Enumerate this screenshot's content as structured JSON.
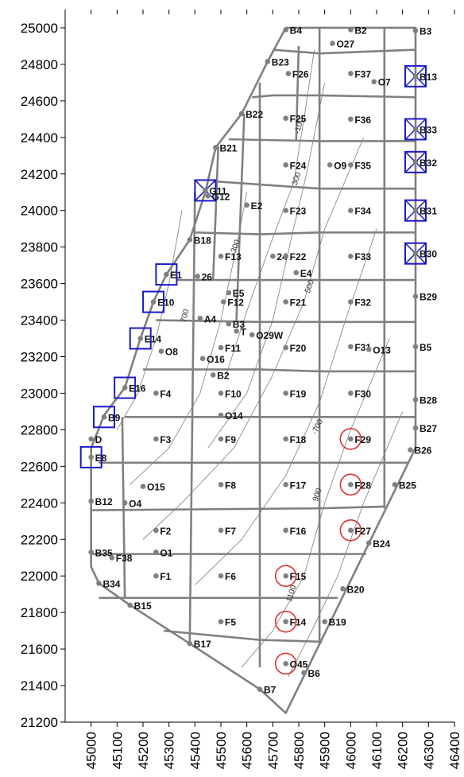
{
  "chart_data": {
    "type": "scatter",
    "title": "",
    "xlabel": "",
    "ylabel": "",
    "xlim": [
      44900,
      46400
    ],
    "ylim": [
      21200,
      25100
    ],
    "x_ticks": [
      45000,
      45100,
      45200,
      45300,
      45400,
      45500,
      45600,
      45700,
      45800,
      45900,
      46000,
      46100,
      46200,
      46300,
      46400
    ],
    "y_ticks": [
      21200,
      21400,
      21600,
      21800,
      22000,
      22200,
      22400,
      22600,
      22800,
      23000,
      23200,
      23400,
      23600,
      23800,
      24000,
      24200,
      24400,
      24600,
      24800,
      25000
    ],
    "grid": false,
    "colors": {
      "cells": "#808080",
      "wells": "#808080",
      "square_marker": "#1a1acc",
      "circle_marker": "#e03030",
      "contours": "#8a8a8a"
    },
    "wells": [
      {
        "label": "B4",
        "x": 45750,
        "y": 24990
      },
      {
        "label": "B2",
        "x": 46000,
        "y": 24990
      },
      {
        "label": "B3",
        "x": 46250,
        "y": 24985
      },
      {
        "label": "O27",
        "x": 45930,
        "y": 24915
      },
      {
        "label": "B23",
        "x": 45680,
        "y": 24815
      },
      {
        "label": "F26",
        "x": 45760,
        "y": 24750
      },
      {
        "label": "F37",
        "x": 46000,
        "y": 24750
      },
      {
        "label": "O7",
        "x": 46090,
        "y": 24705
      },
      {
        "label": "B13",
        "x": 46250,
        "y": 24735
      },
      {
        "label": "B22",
        "x": 45580,
        "y": 24530
      },
      {
        "label": "F25",
        "x": 45750,
        "y": 24505
      },
      {
        "label": "F36",
        "x": 46000,
        "y": 24500
      },
      {
        "label": "B33",
        "x": 46250,
        "y": 24445
      },
      {
        "label": "B21",
        "x": 45480,
        "y": 24345
      },
      {
        "label": "F24",
        "x": 45750,
        "y": 24250
      },
      {
        "label": "O9",
        "x": 45920,
        "y": 24250
      },
      {
        "label": "F35",
        "x": 46000,
        "y": 24250
      },
      {
        "label": "B32",
        "x": 46250,
        "y": 24265
      },
      {
        "label": "G11",
        "x": 45440,
        "y": 24110
      },
      {
        "label": "G12",
        "x": 45450,
        "y": 24080
      },
      {
        "label": "E2",
        "x": 45600,
        "y": 24030
      },
      {
        "label": "F23",
        "x": 45750,
        "y": 24000
      },
      {
        "label": "F34",
        "x": 46000,
        "y": 24000
      },
      {
        "label": "B31",
        "x": 46250,
        "y": 24000
      },
      {
        "label": "B18",
        "x": 45380,
        "y": 23840
      },
      {
        "label": "F13",
        "x": 45500,
        "y": 23750
      },
      {
        "label": "24",
        "x": 45700,
        "y": 23750
      },
      {
        "label": "F22",
        "x": 45750,
        "y": 23750
      },
      {
        "label": "F33",
        "x": 46000,
        "y": 23750
      },
      {
        "label": "B30",
        "x": 46250,
        "y": 23765
      },
      {
        "label": "E1",
        "x": 45290,
        "y": 23650
      },
      {
        "label": "26",
        "x": 45410,
        "y": 23640
      },
      {
        "label": "E4",
        "x": 45790,
        "y": 23660
      },
      {
        "label": "B29",
        "x": 46250,
        "y": 23530
      },
      {
        "label": "E5",
        "x": 45530,
        "y": 23550
      },
      {
        "label": "F12",
        "x": 45510,
        "y": 23500
      },
      {
        "label": "F21",
        "x": 45750,
        "y": 23500
      },
      {
        "label": "F32",
        "x": 46000,
        "y": 23500
      },
      {
        "label": "E10",
        "x": 45240,
        "y": 23500
      },
      {
        "label": "A4",
        "x": 45420,
        "y": 23410
      },
      {
        "label": "B3",
        "x": 45530,
        "y": 23380
      },
      {
        "label": "T",
        "x": 45560,
        "y": 23340
      },
      {
        "label": "O29W",
        "x": 45620,
        "y": 23320
      },
      {
        "label": "E14",
        "x": 45190,
        "y": 23300
      },
      {
        "label": "F11",
        "x": 45500,
        "y": 23250
      },
      {
        "label": "F20",
        "x": 45750,
        "y": 23250
      },
      {
        "label": "F31",
        "x": 46000,
        "y": 23255
      },
      {
        "label": "O13",
        "x": 46070,
        "y": 23240
      },
      {
        "label": "B5",
        "x": 46250,
        "y": 23255
      },
      {
        "label": "O8",
        "x": 45270,
        "y": 23230
      },
      {
        "label": "O16",
        "x": 45430,
        "y": 23190
      },
      {
        "label": "B2",
        "x": 45470,
        "y": 23100
      },
      {
        "label": "E16",
        "x": 45130,
        "y": 23030
      },
      {
        "label": "F4",
        "x": 45250,
        "y": 23000
      },
      {
        "label": "F10",
        "x": 45500,
        "y": 23000
      },
      {
        "label": "F19",
        "x": 45750,
        "y": 23000
      },
      {
        "label": "F30",
        "x": 46000,
        "y": 23000
      },
      {
        "label": "B28",
        "x": 46250,
        "y": 22965
      },
      {
        "label": "O14",
        "x": 45500,
        "y": 22880
      },
      {
        "label": "B9",
        "x": 45050,
        "y": 22870
      },
      {
        "label": "B27",
        "x": 46250,
        "y": 22810
      },
      {
        "label": "D",
        "x": 45000,
        "y": 22750
      },
      {
        "label": "F3",
        "x": 45250,
        "y": 22750
      },
      {
        "label": "F9",
        "x": 45500,
        "y": 22750
      },
      {
        "label": "F18",
        "x": 45750,
        "y": 22750
      },
      {
        "label": "F29",
        "x": 46000,
        "y": 22750
      },
      {
        "label": "E8",
        "x": 45000,
        "y": 22650
      },
      {
        "label": "B26",
        "x": 46230,
        "y": 22690
      },
      {
        "label": "O15",
        "x": 45200,
        "y": 22490
      },
      {
        "label": "F8",
        "x": 45500,
        "y": 22500
      },
      {
        "label": "F17",
        "x": 45750,
        "y": 22500
      },
      {
        "label": "F28",
        "x": 46000,
        "y": 22500
      },
      {
        "label": "B25",
        "x": 46170,
        "y": 22500
      },
      {
        "label": "B12",
        "x": 45000,
        "y": 22410
      },
      {
        "label": "O4",
        "x": 45130,
        "y": 22400
      },
      {
        "label": "F2",
        "x": 45250,
        "y": 22250
      },
      {
        "label": "F7",
        "x": 45500,
        "y": 22250
      },
      {
        "label": "F16",
        "x": 45750,
        "y": 22250
      },
      {
        "label": "F27",
        "x": 46000,
        "y": 22250
      },
      {
        "label": "B24",
        "x": 46070,
        "y": 22180
      },
      {
        "label": "B35",
        "x": 45000,
        "y": 22130
      },
      {
        "label": "F38",
        "x": 45080,
        "y": 22100
      },
      {
        "label": "O1",
        "x": 45250,
        "y": 22130
      },
      {
        "label": "F1",
        "x": 45250,
        "y": 22000
      },
      {
        "label": "F6",
        "x": 45500,
        "y": 22000
      },
      {
        "label": "F15",
        "x": 45750,
        "y": 22000
      },
      {
        "label": "B34",
        "x": 45030,
        "y": 21960
      },
      {
        "label": "B20",
        "x": 45970,
        "y": 21930
      },
      {
        "label": "B15",
        "x": 45150,
        "y": 21840
      },
      {
        "label": "F5",
        "x": 45500,
        "y": 21750
      },
      {
        "label": "F14",
        "x": 45750,
        "y": 21750
      },
      {
        "label": "B19",
        "x": 45900,
        "y": 21750
      },
      {
        "label": "B17",
        "x": 45380,
        "y": 21630
      },
      {
        "label": "O45",
        "x": 45750,
        "y": 21520
      },
      {
        "label": "B6",
        "x": 45820,
        "y": 21470
      },
      {
        "label": "B7",
        "x": 45650,
        "y": 21380
      }
    ],
    "square_marked": [
      "B13",
      "B33",
      "B32",
      "G11",
      "B31",
      "B30",
      "E1",
      "E10",
      "E14",
      "E16",
      "B9",
      "E8"
    ],
    "crossed_squares": [
      "B13",
      "B33",
      "B32",
      "G11",
      "B31",
      "B30"
    ],
    "circle_marked": [
      "F29",
      "F28",
      "F27",
      "F15",
      "F14",
      "O45"
    ],
    "contour_labels": [
      {
        "text": "-100",
        "x": 45810,
        "y": 24460,
        "rotation": -75
      },
      {
        "text": "300",
        "x": 45800,
        "y": 24170,
        "rotation": -72
      },
      {
        "text": "300",
        "x": 45565,
        "y": 23800,
        "rotation": -70
      },
      {
        "text": "500",
        "x": 45850,
        "y": 23580,
        "rotation": -70
      },
      {
        "text": "700",
        "x": 45370,
        "y": 23420,
        "rotation": -75
      },
      {
        "text": "-700",
        "x": 45880,
        "y": 22810,
        "rotation": -65
      },
      {
        "text": "900",
        "x": 45880,
        "y": 22440,
        "rotation": -72
      },
      {
        "text": "1100",
        "x": 45780,
        "y": 21900,
        "rotation": -72
      }
    ]
  }
}
